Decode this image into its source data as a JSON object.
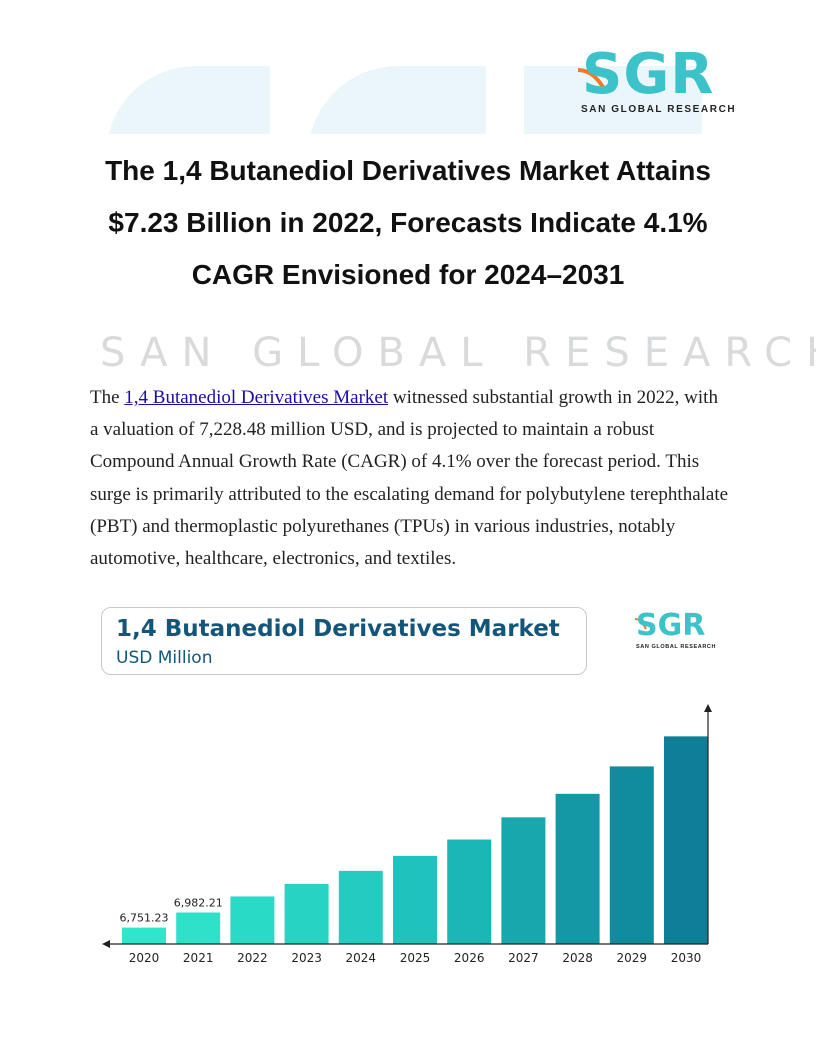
{
  "header": {
    "logo_letters": "SGR",
    "logo_subtitle": "SAN GLOBAL RESEARCH",
    "watermark_text": "SAN GLOBAL RESEARCH"
  },
  "article": {
    "title": "The 1,4 Butanediol Derivatives Market Attains $7.23 Billion in 2022, Forecasts Indicate 4.1% CAGR Envisioned for 2024–2031",
    "intro_before_link": "The ",
    "link_text": "1,4 Butanediol Derivatives Market",
    "intro_after_link": " witnessed substantial growth in 2022, with a valuation of 7,228.48 million USD, and is projected to maintain a robust Compound Annual Growth Rate (CAGR) of 4.1% over the forecast period. This surge is primarily attributed to the escalating demand for polybutylene terephthalate (PBT) and thermoplastic polyurethanes (TPUs) in various industries, notably automotive, healthcare, electronics, and textiles."
  },
  "chart_header": {
    "title": "1,4 Butanediol Derivatives Market",
    "unit": "USD Million",
    "logo_letters": "SGR",
    "logo_subtitle": "SAN GLOBAL RESEARCH"
  },
  "chart_data": {
    "type": "bar",
    "title": "1,4 Butanediol Derivatives Market",
    "subtitle": "USD Million",
    "categories": [
      "2020",
      "2021",
      "2022",
      "2023",
      "2024",
      "2025",
      "2026",
      "2027",
      "2028",
      "2029",
      "2030"
    ],
    "values": [
      6751.23,
      6982.21,
      7228.48,
      7420,
      7620,
      7850,
      8100,
      8440,
      8800,
      9220,
      9680
    ],
    "data_labels": [
      "6,751.23",
      "6,982.21",
      "",
      "",
      "",
      "",
      "",
      "",
      "",
      "",
      ""
    ],
    "ylim": [
      6500,
      9900
    ],
    "colors": [
      "#2ee6cc",
      "#2de2c9",
      "#29dac6",
      "#27d4c3",
      "#23cbc0",
      "#1fc2bc",
      "#1bb6b6",
      "#17a7ad",
      "#1398a6",
      "#108c9e",
      "#0e7f96"
    ],
    "grid": false
  }
}
